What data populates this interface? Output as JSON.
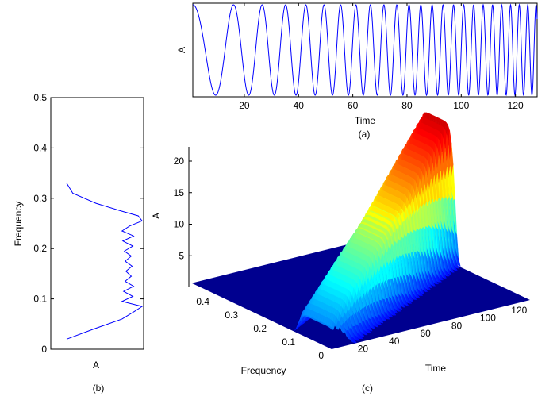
{
  "chart_data": [
    {
      "id": "a",
      "type": "line",
      "caption": "(a)",
      "xlabel": "Time",
      "ylabel": "A",
      "xlim": [
        1,
        128
      ],
      "x_ticks": [
        "20",
        "40",
        "60",
        "80",
        "100",
        "120"
      ],
      "y_ticks_visible": false,
      "series": [
        {
          "color": "#0000ff",
          "signal": "linear chirp, frequency rising over time",
          "frequency_start": 0.05,
          "frequency_end": 0.33
        }
      ]
    },
    {
      "id": "b",
      "type": "line",
      "caption": "(b)",
      "xlabel": "A",
      "ylabel": "Frequency",
      "ylim": [
        0,
        0.5
      ],
      "y_ticks": [
        "0",
        "0.1",
        "0.2",
        "0.3",
        "0.4",
        "0.5"
      ],
      "x_ticks_visible": false,
      "series": [
        {
          "color": "#0000ff",
          "frequency": [
            0.02,
            0.04,
            0.06,
            0.075,
            0.085,
            0.095,
            0.105,
            0.115,
            0.125,
            0.135,
            0.145,
            0.155,
            0.165,
            0.175,
            0.185,
            0.195,
            0.205,
            0.215,
            0.225,
            0.235,
            0.245,
            0.255,
            0.265,
            0.275,
            0.29,
            0.31,
            0.33
          ],
          "amplitude": [
            0.0,
            0.35,
            0.72,
            0.88,
            0.98,
            0.72,
            0.86,
            0.74,
            0.87,
            0.76,
            0.84,
            0.77,
            0.85,
            0.76,
            0.84,
            0.75,
            0.86,
            0.73,
            0.87,
            0.72,
            0.82,
            0.98,
            0.93,
            0.7,
            0.38,
            0.08,
            0.0
          ]
        }
      ]
    },
    {
      "id": "c",
      "type": "surface",
      "caption": "(c)",
      "xlabel": "Time",
      "ylabel": "Frequency",
      "zlabel": "A",
      "xlim": [
        1,
        128
      ],
      "ylim": [
        0,
        0.5
      ],
      "zlim": [
        0,
        22
      ],
      "x_ticks": [
        "20",
        "40",
        "60",
        "80",
        "100",
        "120"
      ],
      "y_ticks": [
        "0",
        "0.1",
        "0.2",
        "0.3",
        "0.4"
      ],
      "z_ticks": [
        "5",
        "10",
        "15",
        "20"
      ],
      "colormap": "jet",
      "ridge": {
        "frequency_start": 0.05,
        "frequency_end": 0.33,
        "peak_start": 4,
        "peak_end": 22
      }
    }
  ]
}
